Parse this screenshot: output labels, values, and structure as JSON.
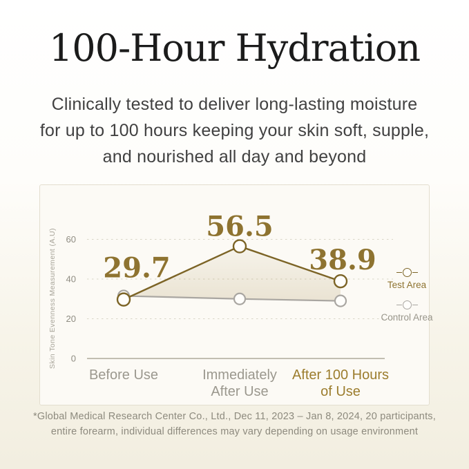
{
  "header": {
    "title": "100-Hour Hydration",
    "subtitle_lines": [
      "Clinically tested to deliver long-lasting moisture",
      "for up to 100 hours keeping your skin soft, supple,",
      "and nourished all day and beyond"
    ]
  },
  "chart_data": {
    "type": "line",
    "title": "",
    "xlabel": "",
    "ylabel": "Skin Tone Evenness Measurement (A.U)",
    "yticks": [
      0,
      20,
      40,
      60
    ],
    "ylim": [
      0,
      70
    ],
    "grid": "horizontal-dashed",
    "legend_position": "right-inside",
    "categories": [
      {
        "lines": [
          "Before Use"
        ],
        "emphasis": false
      },
      {
        "lines": [
          "Immediately",
          "After Use"
        ],
        "emphasis": false
      },
      {
        "lines": [
          "After 100 Hours",
          "of Use"
        ],
        "emphasis": true
      }
    ],
    "series": [
      {
        "name": "Test Area",
        "values": [
          29.7,
          56.5,
          38.9
        ],
        "show_labels": true,
        "color": "#7c6426",
        "label_color": "#8e7330"
      },
      {
        "name": "Control Area",
        "values": [
          31.5,
          30,
          29
        ],
        "show_labels": false,
        "color": "#a9a6a1"
      }
    ],
    "area_fill_between": [
      "Test Area",
      "Control Area"
    ]
  },
  "footnote": {
    "lines": [
      "*Global Medical Research Center Co., Ltd., Dec 11, 2023 – Jan 8, 2024, 20 participants,",
      "entire forearm, individual differences may vary depending on usage environment"
    ]
  },
  "colors": {
    "accent_gold_text": "#8e7330",
    "gold_line": "#7c6426",
    "gold_x_label": "#9c7d2e",
    "gray_line": "#a9a6a1",
    "card_background": "#fcfaf5",
    "card_border": "#e3decf",
    "page_bottom": "#f2eee0",
    "grid_line": "#d9d5c7",
    "axis_line": "#c2beb1"
  }
}
